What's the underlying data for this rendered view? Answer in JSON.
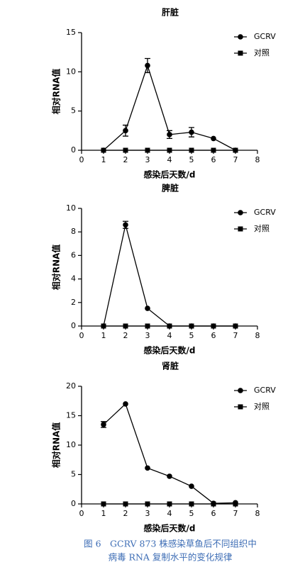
{
  "chart_data": [
    {
      "type": "line",
      "title": "肝脏",
      "xlabel": "感染后天数/d",
      "ylabel": "相对RNA值",
      "x": [
        1,
        2,
        3,
        4,
        5,
        6,
        7
      ],
      "xlim": [
        0,
        8
      ],
      "xticks": [
        0,
        1,
        2,
        3,
        4,
        5,
        6,
        7,
        8
      ],
      "ylim": [
        0,
        15
      ],
      "yticks": [
        0,
        5,
        10,
        15
      ],
      "legend": "upper right",
      "series": [
        {
          "name": "GCRV",
          "color": "#000000",
          "marker": "circle",
          "values": [
            0,
            2.5,
            10.8,
            2.0,
            2.3,
            1.5,
            0
          ],
          "errors": [
            null,
            0.7,
            0.9,
            0.5,
            0.6,
            null,
            null
          ]
        },
        {
          "name": "对照",
          "color": "#000000",
          "marker": "square",
          "values": [
            0,
            0,
            0,
            0,
            0,
            0,
            0
          ]
        }
      ]
    },
    {
      "type": "line",
      "title": "脾脏",
      "xlabel": "感染后天数/d",
      "ylabel": "相对RNA值",
      "x": [
        1,
        2,
        3,
        4,
        5,
        6,
        7
      ],
      "xlim": [
        0,
        8
      ],
      "xticks": [
        0,
        1,
        2,
        3,
        4,
        5,
        6,
        7,
        8
      ],
      "ylim": [
        0,
        10
      ],
      "yticks": [
        0,
        2,
        4,
        6,
        8,
        10
      ],
      "legend": "upper right",
      "series": [
        {
          "name": "GCRV",
          "color": "#000000",
          "marker": "circle",
          "values": [
            0,
            8.6,
            1.5,
            0,
            0,
            0,
            0
          ],
          "errors": [
            null,
            0.3,
            null,
            null,
            null,
            null,
            null
          ]
        },
        {
          "name": "对照",
          "color": "#000000",
          "marker": "square",
          "values": [
            0,
            0,
            0,
            0,
            0,
            0,
            0
          ]
        }
      ]
    },
    {
      "type": "line",
      "title": "肾脏",
      "xlabel": "感染后天数/d",
      "ylabel": "相对RNA值",
      "x": [
        1,
        2,
        3,
        4,
        5,
        6,
        7
      ],
      "xlim": [
        0,
        8
      ],
      "xticks": [
        0,
        1,
        2,
        3,
        4,
        5,
        6,
        7,
        8
      ],
      "ylim": [
        0,
        20
      ],
      "yticks": [
        0,
        5,
        10,
        15,
        20
      ],
      "legend": "upper right",
      "series": [
        {
          "name": "GCRV",
          "color": "#000000",
          "marker": "circle",
          "values": [
            13.5,
            17,
            6.1,
            4.7,
            3.0,
            0.1,
            0.2
          ],
          "errors": [
            0.5,
            null,
            null,
            null,
            null,
            null,
            null
          ]
        },
        {
          "name": "对照",
          "color": "#000000",
          "marker": "square",
          "values": [
            0,
            0,
            0,
            0,
            0,
            0,
            0
          ]
        }
      ]
    }
  ],
  "caption": [
    "图 6　GCRV 873 株感染草鱼后不同组织中",
    "病毒 RNA 复制水平的变化规律"
  ]
}
